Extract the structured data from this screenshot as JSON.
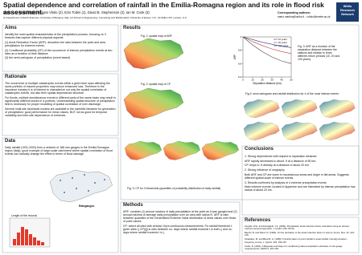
{
  "header": {
    "title": "Spatial dependence and correlation of rainfall in the Emilia-Romagna region and its role in flood risk assessment.",
    "authors": "Mario L.V. Martina (1), Renato Vitolo (2), Ezio Todini (1), David B. Stephenson (2), Ian M. Cook (3)",
    "affiliations": "(1) Department of Earth Sciences, University of Bologna, Italy, (2) School of Engineering, Computing and Mathematics University of Exeter, U.K. (3) Willis LTD, London, U.K.",
    "contact_label": "Corresponding authors:",
    "contact": "mario.martina@unibo.it - r.vitolo@exeter.ac.uk",
    "logo": "Willis Research Network"
  },
  "aims": {
    "heading": "Aims",
    "paragraphs": [
      "Identify the main spatial characteristics of the precipitation process, focusing on 3 features that capture different physical aspects:",
      "(1) Areal Reduction Factor (ARF): describes the ratio between the point and area precipitation for extreme events.",
      "(2) Conditional probability (CP) of the occurrence of intense precipitation events at two sites as a function of their distance",
      "(3) the semi-variogram of precipitation (event based)"
    ]
  },
  "rationale": {
    "heading": "Rationale",
    "paragraphs": [
      "The occurrence of multiple catastrophic events within a given time span affecting the same portfolio of insured properties may induce enhanced loss. Therefore in the insurance industry it is of interest to characterize not only the spatial correlation of catastrophic events, but also their spatial dependence structure.",
      "For floods, multiple simultaneous events in different parts of the same basin may result in significantly different losses in a portfolio. Understanding spatial structure of precipitation field is necessary for proper modelling of spatial correlation of river discharge.",
      "Several multi-site stochastic models are available in the scientific literature for generation of precipitation: good performance for mean values, BUT not as good for temporal variability and inter-site dependence of extremes."
    ]
  },
  "data": {
    "heading": "Data",
    "paragraphs": [
      "Daily rainfall (1931-2003) from a network of 188 rain gauges in the Emilia-Romagna region (Italy): good example of large-scale catchment where spatial correlation of flood events can radically change the effect in terms of flood damage."
    ],
    "map_label": "Raingauges",
    "histogram_label": "Length of the records"
  },
  "results": {
    "heading": "Results",
    "fig1": "Fig. 1: spatial map of ARF",
    "fig2": "Fig. 2: spatial map of CP",
    "fig3": "Fig. 3: ARF as a function of the separation distance between the stations and relative to three different return periods (10, 20 and 100 years).",
    "fig4": "Fig 4: semi-variogram and rainfall distribution for 4 of the most intense events",
    "fig3cp": "Fig. 3: CP for 3 thresholds (quantiles of probability distribution of daily rainfall)",
    "arf_chart": {
      "x_label": "Separation distance (km)",
      "y_label": "ARF",
      "xlim": [
        0,
        50
      ],
      "ylim": [
        0.4,
        1
      ],
      "xticks": [
        0,
        10,
        20,
        30,
        40,
        50
      ],
      "yticks": [
        0.4,
        0.6,
        0.8,
        1
      ],
      "x": [
        0,
        10,
        20,
        30,
        40,
        50
      ],
      "series": [
        {
          "name": "10 years",
          "color": "#1f3a93",
          "values": [
            1,
            0.96,
            0.92,
            0.89,
            0.86,
            0.84
          ]
        },
        {
          "name": "20 years",
          "color": "#c0392b",
          "values": [
            1,
            0.93,
            0.87,
            0.82,
            0.78,
            0.75
          ]
        },
        {
          "name": "100 years",
          "color": "#444444",
          "values": [
            1,
            0.88,
            0.78,
            0.7,
            0.64,
            0.6
          ]
        }
      ]
    }
  },
  "methods": {
    "heading": "Methods",
    "paragraphs": [
      "ARF: consider (1) annual maxima of daily precipitation at the point as it was gauged and (2) annual maxima of average daily precipitation over an area with radius R. ARF is ratio between quantiles of the Generalised Extreme Value distribution of areal values over those of point values",
      "CP: select all sites with at least 10yrs continuous measurements. Fix rainfall threshold t; given sites i,j CP(i|j) is ratio between no. days where rainfall exceeds t in both i,j and no. days where rainfall exceeds t in j."
    ]
  },
  "conclusions": {
    "heading": "Conclusions",
    "paragraphs": [
      "1. Strong dependence with respect to separation distance:",
      "ARF rapidly decreases to about .9 at a distance of 50 km;",
      "CP drops to .8 already at a distance of about 20 km.",
      "2. Strong influence of orography",
      "Both ARF and CP are lower in mountainous areas and larger in flat areas. Suggests different spatial scale of intense events.",
      "3. Results confirmed by analysis of 4 extreme precipitation events",
      "Main extreme events: located in Appenine and are interested by intense precipitation has radius of about 20 km."
    ]
  },
  "references": {
    "heading": "References",
    "items": [
      "Asquith, W.H. and Famiglietti, J.S. (2000), Precipitation areal-reduction factor estimation using an annual-maxima centered approach, J. Hydrol. 230, 55-69.",
      "Bacchi, B. and Ranzi, R. (1996), On the derivation of the areal reduction factor of storms, Atmos. Res. 42, 123-135.",
      "Sivapalan, M. and Bloschl, G. (1998), Transformation of point rainfall to areal rainfall: intensity-duration-frequency curves, J. Hydrol. 204, 150-167.",
      "Todini, E. (2001), A Bayesian technique for conditioning radar precipitation estimates to rain-gauge measurements, HESS 5, 187-199."
    ]
  }
}
